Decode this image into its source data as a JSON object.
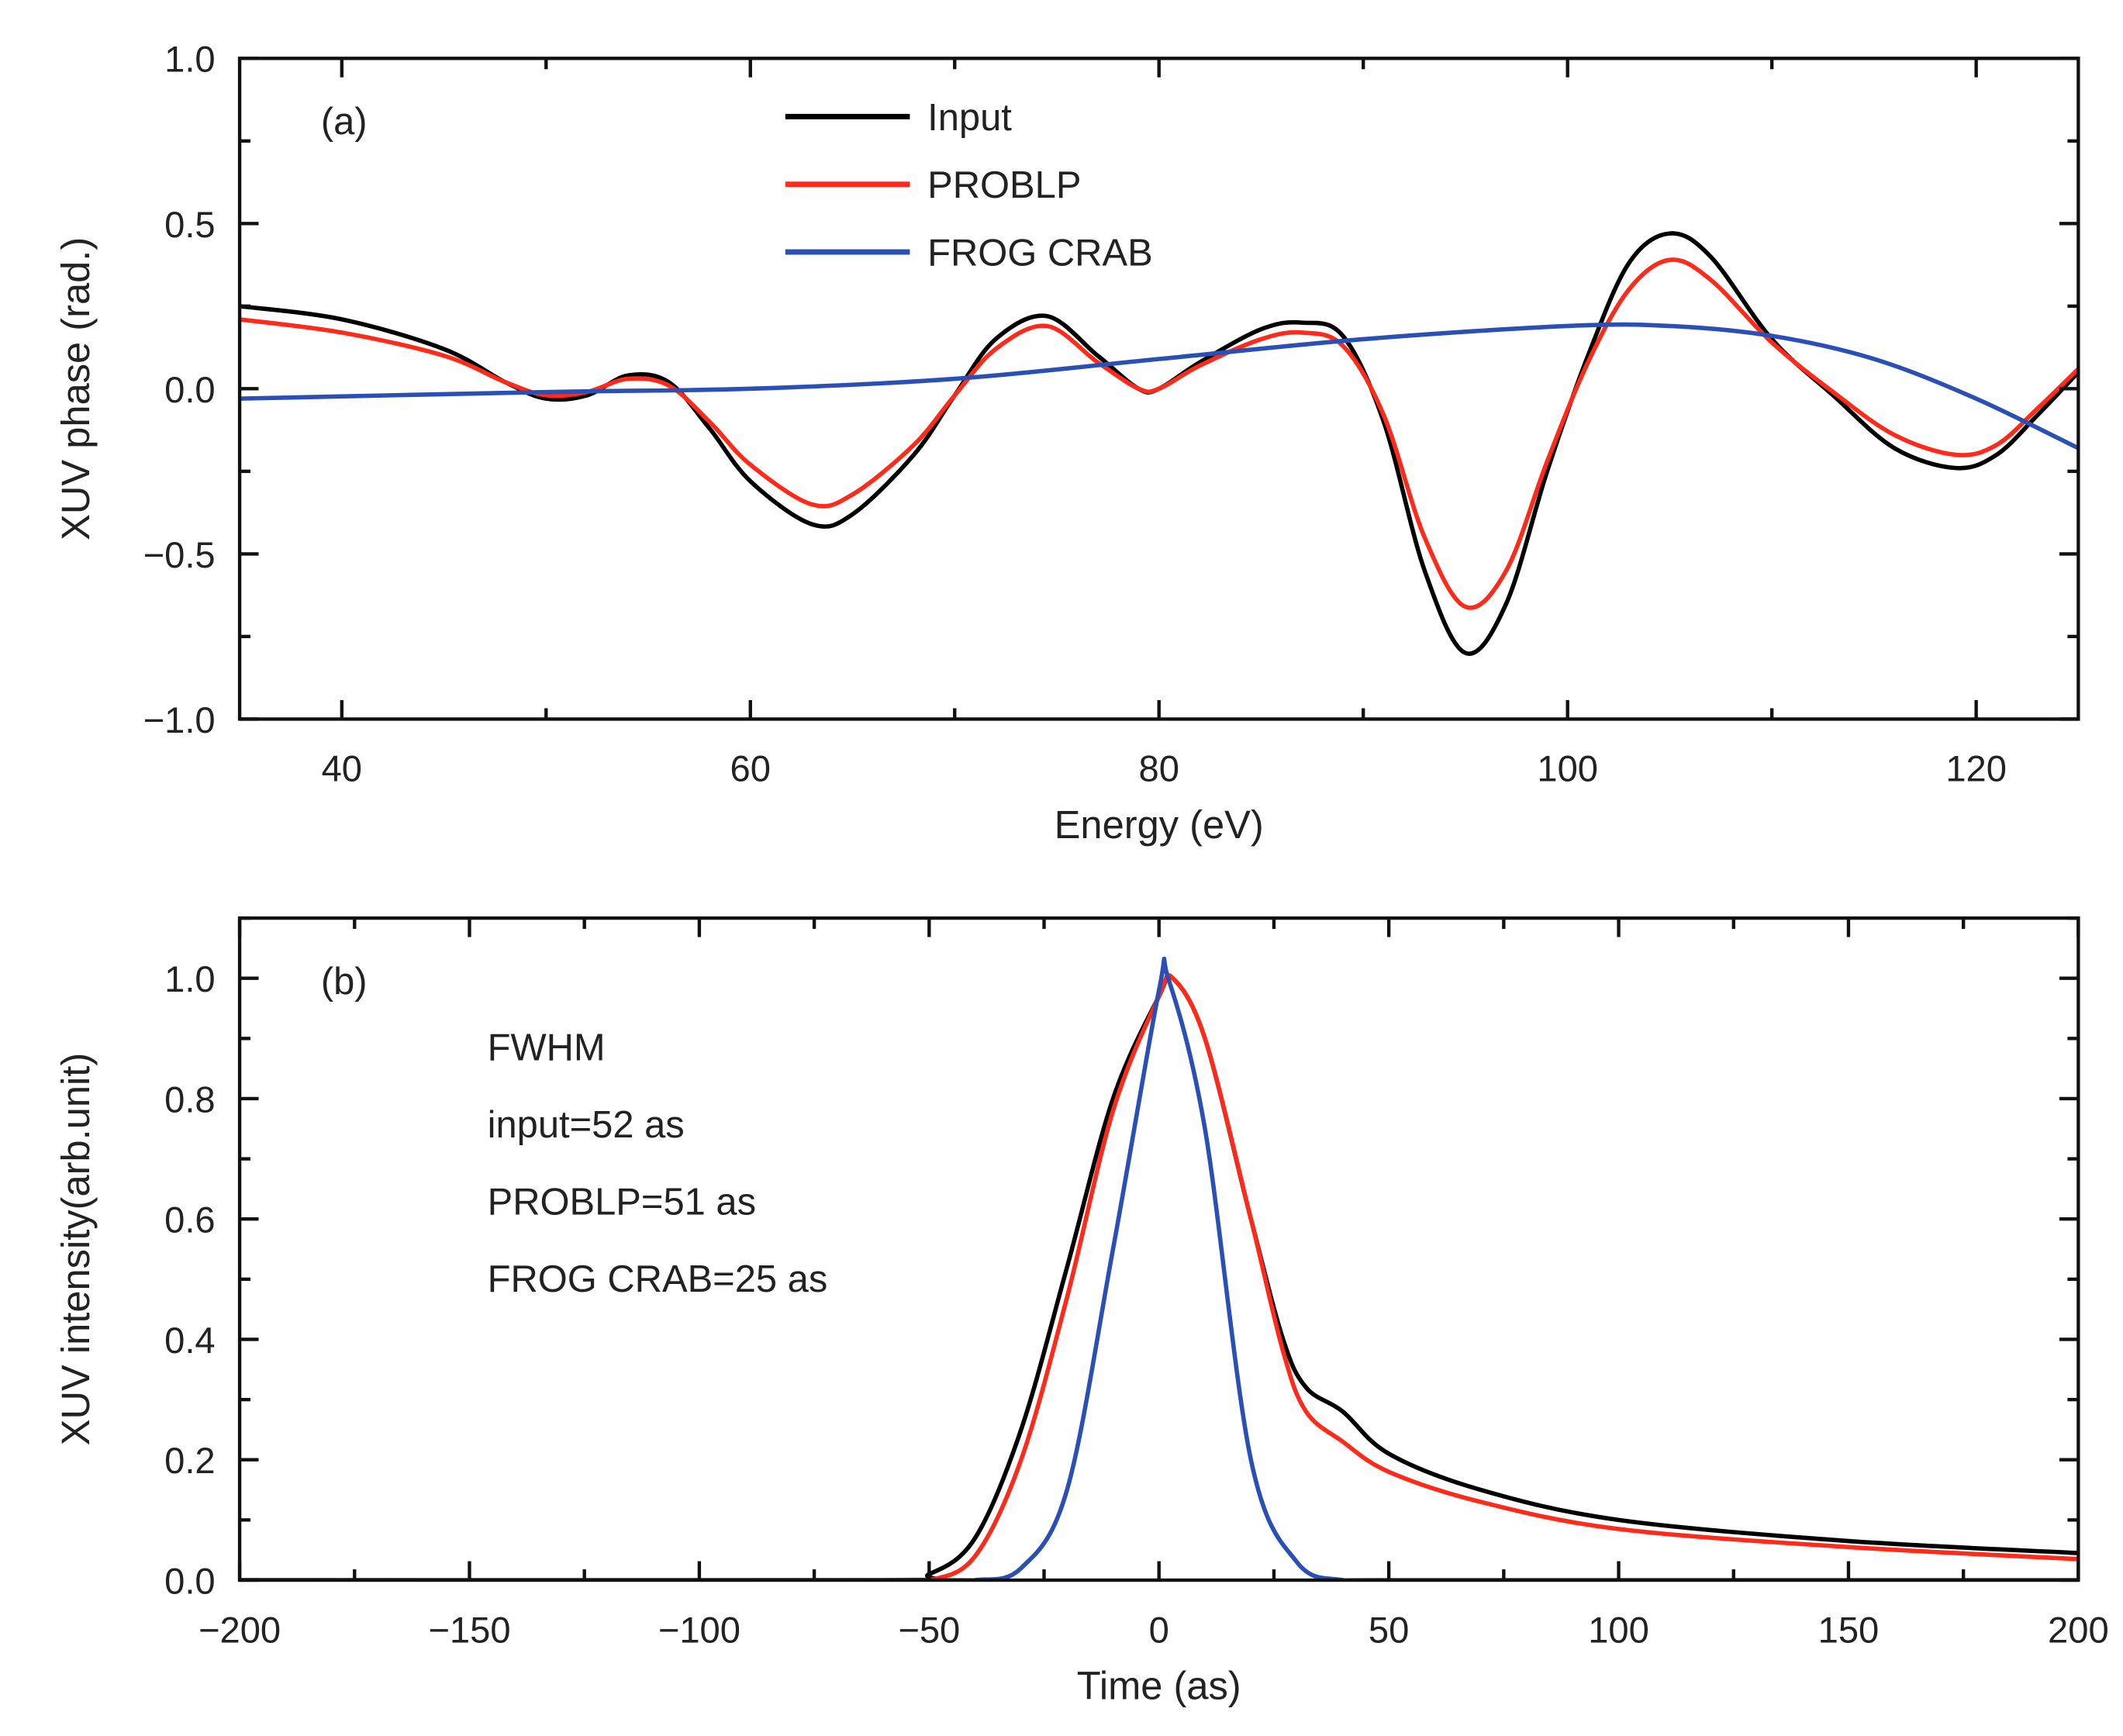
{
  "chart_data": [
    {
      "type": "line",
      "panel_label": "(a)",
      "xlabel": "Energy (eV)",
      "ylabel": "XUV phase (rad.)",
      "xlim": [
        35,
        125
      ],
      "ylim": [
        -1.0,
        1.0
      ],
      "xticks": [
        40,
        60,
        80,
        100,
        120
      ],
      "xtick_labels": [
        "40",
        "60",
        "80",
        "100",
        "120"
      ],
      "x_minor_step": 10,
      "yticks": [
        -1.0,
        -0.5,
        0.0,
        0.5,
        1.0
      ],
      "ytick_labels": [
        "−1.0",
        "−0.5",
        "0.0",
        "0.5",
        "1.0"
      ],
      "y_minor_step": 0.25,
      "grid": false,
      "legend": "top-center",
      "series": [
        {
          "name": "Input",
          "color": "#000000",
          "x": [
            35,
            40,
            45,
            48,
            50,
            52,
            54,
            56,
            58,
            60,
            63,
            65,
            68,
            70,
            72,
            74.5,
            77,
            79,
            80,
            82,
            85,
            87,
            89,
            91,
            93,
            95,
            97,
            99,
            101,
            103,
            105,
            107,
            110,
            113,
            116,
            119,
            121,
            123,
            125
          ],
          "y": [
            0.25,
            0.21,
            0.12,
            0.02,
            -0.03,
            -0.02,
            0.04,
            0.02,
            -0.12,
            -0.28,
            -0.41,
            -0.38,
            -0.2,
            -0.02,
            0.15,
            0.22,
            0.1,
            0.0,
            0.0,
            0.08,
            0.18,
            0.2,
            0.16,
            -0.1,
            -0.55,
            -0.8,
            -0.65,
            -0.25,
            0.1,
            0.38,
            0.47,
            0.4,
            0.15,
            -0.02,
            -0.18,
            -0.24,
            -0.2,
            -0.08,
            0.05
          ]
        },
        {
          "name": "PROBLP",
          "color": "#ff2a1a",
          "x": [
            35,
            40,
            45,
            48,
            50,
            52,
            54,
            56,
            58,
            60,
            63,
            65,
            68,
            70,
            72,
            74.5,
            77,
            79,
            80,
            82,
            85,
            87,
            89,
            91,
            93,
            95,
            97,
            99,
            101,
            103,
            105,
            107,
            110,
            113,
            116,
            119,
            121,
            123,
            125
          ],
          "y": [
            0.21,
            0.17,
            0.1,
            0.02,
            -0.02,
            -0.01,
            0.03,
            0.01,
            -0.1,
            -0.23,
            -0.35,
            -0.32,
            -0.17,
            -0.02,
            0.12,
            0.19,
            0.08,
            0.0,
            0.0,
            0.07,
            0.15,
            0.17,
            0.13,
            -0.08,
            -0.45,
            -0.66,
            -0.55,
            -0.22,
            0.08,
            0.3,
            0.39,
            0.33,
            0.14,
            -0.01,
            -0.14,
            -0.2,
            -0.17,
            -0.06,
            0.06
          ]
        },
        {
          "name": "FROG CRAB",
          "color": "#2a4fb5",
          "x": [
            35,
            50,
            60,
            70,
            80,
            90,
            100,
            105,
            110,
            115,
            120,
            125
          ],
          "y": [
            -0.03,
            -0.01,
            0.0,
            0.03,
            0.09,
            0.15,
            0.19,
            0.19,
            0.16,
            0.09,
            -0.03,
            -0.18
          ]
        }
      ]
    },
    {
      "type": "line",
      "panel_label": "(b)",
      "xlabel": "Time (as)",
      "ylabel": "XUV intensity(arb.unit)",
      "xlim": [
        -200,
        200
      ],
      "ylim": [
        0.0,
        1.1
      ],
      "xticks": [
        -200,
        -150,
        -100,
        -50,
        0,
        50,
        100,
        150,
        200
      ],
      "xtick_labels": [
        "−200",
        "−150",
        "−100",
        "−50",
        "0",
        "50",
        "100",
        "150",
        "200"
      ],
      "x_minor_step": 25,
      "yticks": [
        0.0,
        0.2,
        0.4,
        0.6,
        0.8,
        1.0
      ],
      "ytick_labels": [
        "0.0",
        "0.2",
        "0.4",
        "0.6",
        "0.8",
        "1.0"
      ],
      "y_minor_step": 0.1,
      "grid": false,
      "annotations": [
        "FWHM",
        "input=52 as",
        "PROBLP=51 as",
        "FROG CRAB=25 as"
      ],
      "series": [
        {
          "name": "Input",
          "color": "#000000",
          "x": [
            -200,
            -60,
            -50,
            -40,
            -30,
            -20,
            -10,
            0,
            3,
            10,
            20,
            27,
            32,
            40,
            50,
            70,
            100,
            150,
            200
          ],
          "y": [
            0,
            0,
            0.01,
            0.07,
            0.25,
            0.52,
            0.8,
            0.97,
            1.0,
            0.9,
            0.6,
            0.4,
            0.32,
            0.28,
            0.21,
            0.15,
            0.1,
            0.065,
            0.045
          ]
        },
        {
          "name": "PROBLP",
          "color": "#ff2a1a",
          "x": [
            -200,
            -60,
            -50,
            -40,
            -30,
            -20,
            -10,
            0,
            3,
            10,
            20,
            27,
            32,
            40,
            50,
            70,
            100,
            150,
            200
          ],
          "y": [
            0,
            0,
            0.0,
            0.04,
            0.2,
            0.47,
            0.78,
            0.97,
            1.0,
            0.9,
            0.6,
            0.38,
            0.28,
            0.23,
            0.18,
            0.13,
            0.085,
            0.055,
            0.035
          ]
        },
        {
          "name": "FROG CRAB",
          "color": "#2a4fb5",
          "x": [
            -200,
            -50,
            -40,
            -30,
            -20,
            -10,
            0,
            2,
            10,
            20,
            30,
            40,
            50,
            200
          ],
          "y": [
            0,
            0,
            0.0,
            0.02,
            0.15,
            0.55,
            0.98,
            1.0,
            0.75,
            0.2,
            0.03,
            0.0,
            0,
            0
          ]
        }
      ]
    }
  ]
}
